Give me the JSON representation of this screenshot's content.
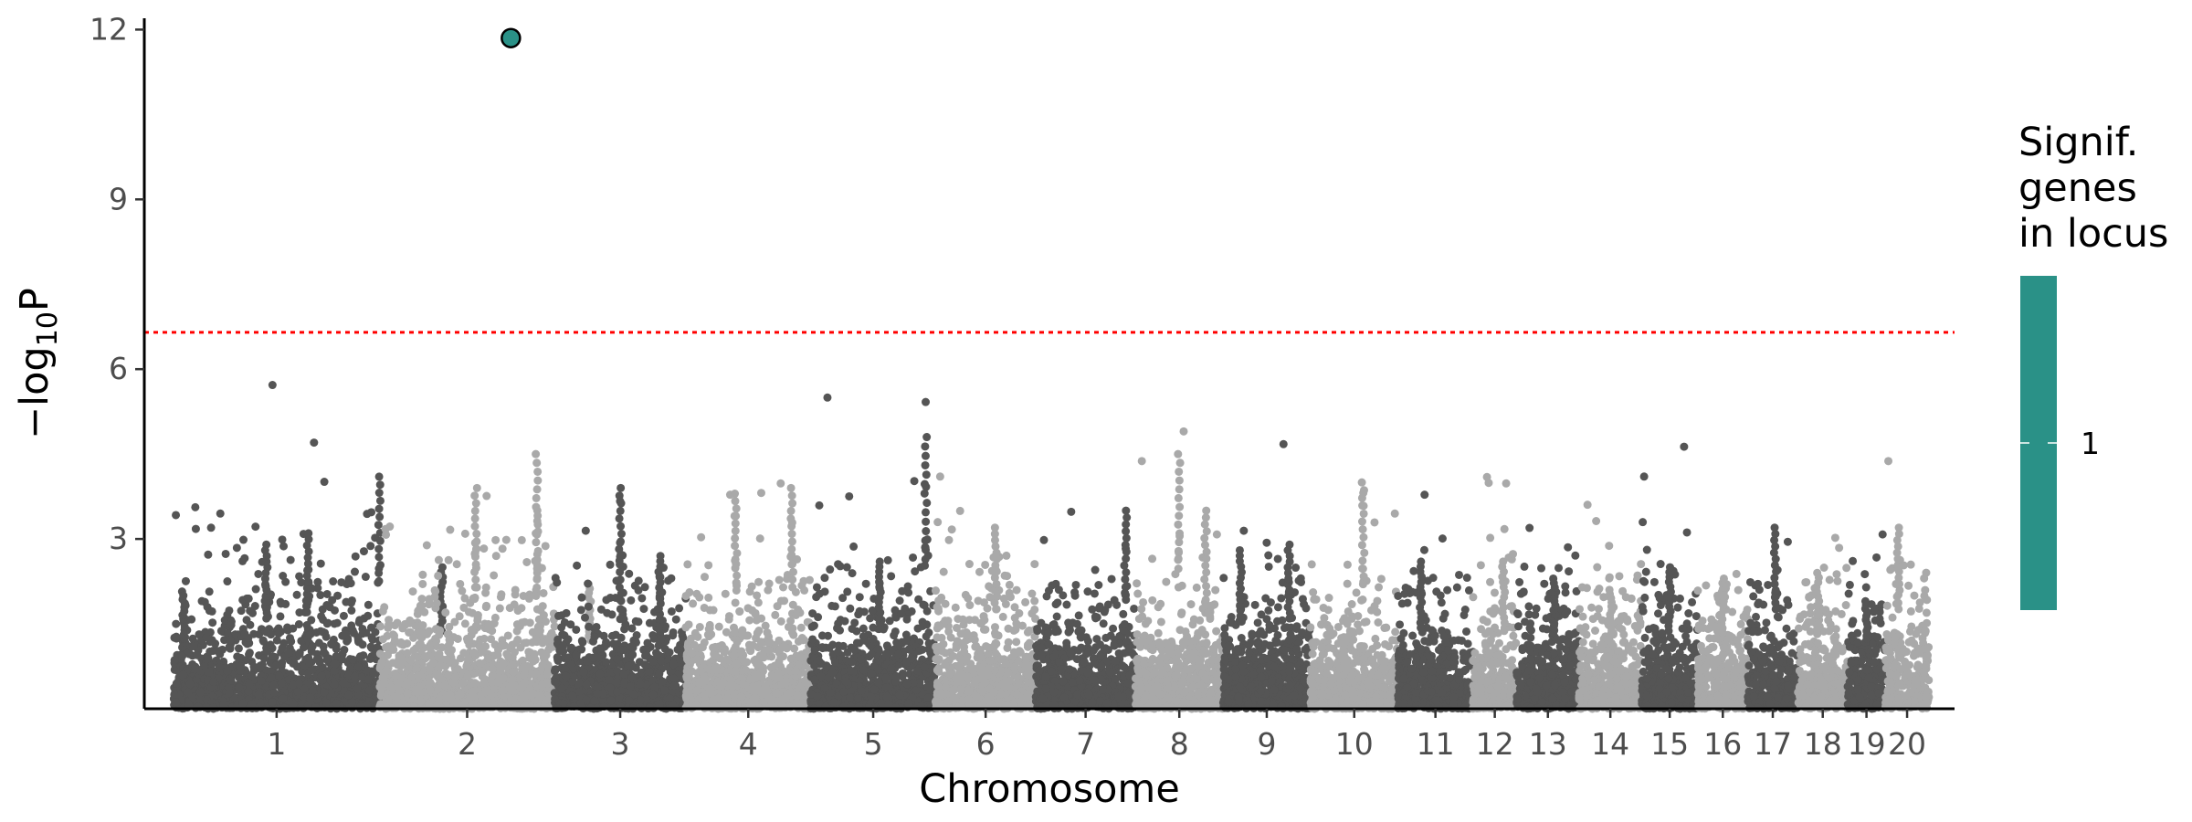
{
  "chart_data": {
    "type": "scatter",
    "subtype": "manhattan",
    "xlabel": "Chromosome",
    "ylabel": {
      "prefix": "−log",
      "sub": "10",
      "suffix": "P"
    },
    "ylim": [
      0,
      12.2
    ],
    "yticks": [
      3,
      6,
      9,
      12
    ],
    "grid": false,
    "threshold": {
      "value": 6.65,
      "color": "#ff0000",
      "style": "dotted"
    },
    "colors": {
      "dark": "#555555",
      "light": "#a9a9a9",
      "highlight": "#2a9187"
    },
    "chromosomes": [
      {
        "label": "1",
        "start": 0,
        "end": 1.65,
        "peaks": [
          [
            0.05,
            2.0
          ],
          [
            0.45,
            2.9
          ],
          [
            0.65,
            3.1
          ],
          [
            1.0,
            4.1
          ],
          [
            1.3,
            2.5
          ]
        ]
      },
      {
        "label": "2",
        "start": 1.65,
        "end": 3.05,
        "peaks": [
          [
            0.55,
            3.9
          ],
          [
            0.9,
            4.5
          ],
          [
            1.2,
            2.2
          ]
        ]
      },
      {
        "label": "3",
        "start": 3.05,
        "end": 4.1,
        "peaks": [
          [
            0.5,
            3.9
          ],
          [
            0.8,
            2.7
          ]
        ]
      },
      {
        "label": "4",
        "start": 4.1,
        "end": 5.1,
        "peaks": [
          [
            0.4,
            3.8
          ],
          [
            0.85,
            3.9
          ]
        ]
      },
      {
        "label": "5",
        "start": 5.1,
        "end": 6.1,
        "peaks": [
          [
            0.55,
            2.6
          ],
          [
            0.92,
            4.8
          ]
        ]
      },
      {
        "label": "6",
        "start": 6.1,
        "end": 6.9,
        "peaks": [
          [
            0.6,
            3.2
          ]
        ]
      },
      {
        "label": "7",
        "start": 6.9,
        "end": 7.7,
        "peaks": [
          [
            0.9,
            3.5
          ]
        ]
      },
      {
        "label": "8",
        "start": 7.7,
        "end": 8.4,
        "peaks": [
          [
            0.5,
            4.5
          ],
          [
            0.8,
            3.5
          ]
        ]
      },
      {
        "label": "9",
        "start": 8.4,
        "end": 9.1,
        "peaks": [
          [
            0.2,
            2.8
          ],
          [
            0.75,
            2.9
          ]
        ]
      },
      {
        "label": "10",
        "start": 9.1,
        "end": 9.8,
        "peaks": [
          [
            0.6,
            4.0
          ]
        ]
      },
      {
        "label": "11",
        "start": 9.8,
        "end": 10.4,
        "peaks": [
          [
            0.3,
            2.6
          ]
        ]
      },
      {
        "label": "12",
        "start": 10.4,
        "end": 10.75,
        "peaks": [
          [
            0.7,
            2.6
          ]
        ]
      },
      {
        "label": "13",
        "start": 10.75,
        "end": 11.25,
        "peaks": [
          [
            0.6,
            2.3
          ]
        ]
      },
      {
        "label": "14",
        "start": 11.25,
        "end": 11.75,
        "peaks": [
          [
            0.5,
            2.1
          ]
        ]
      },
      {
        "label": "15",
        "start": 11.75,
        "end": 12.2,
        "peaks": [
          [
            0.5,
            2.5
          ]
        ]
      },
      {
        "label": "16",
        "start": 12.2,
        "end": 12.6,
        "peaks": [
          [
            0.5,
            2.3
          ]
        ]
      },
      {
        "label": "17",
        "start": 12.6,
        "end": 13.0,
        "peaks": [
          [
            0.55,
            3.2
          ]
        ]
      },
      {
        "label": "18",
        "start": 13.0,
        "end": 13.4,
        "peaks": [
          [
            0.4,
            2.4
          ]
        ]
      },
      {
        "label": "19",
        "start": 13.4,
        "end": 13.7,
        "peaks": [
          [
            0.5,
            1.9
          ]
        ]
      },
      {
        "label": "20",
        "start": 13.7,
        "end": 14.05,
        "peaks": [
          [
            0.3,
            3.2
          ]
        ]
      }
    ],
    "notable_points": [
      {
        "chrom": "1",
        "pos": 0.48,
        "y": 5.72
      },
      {
        "chrom": "5",
        "pos": 0.92,
        "y": 5.42
      },
      {
        "chrom": "8",
        "pos": 0.55,
        "y": 4.9
      },
      {
        "chrom": "17",
        "pos": 0.8,
        "y": 2.95
      },
      {
        "chrom": "18",
        "pos": 0.75,
        "y": 3.02
      }
    ],
    "highlight_point": {
      "chrom": "2",
      "pos": 0.75,
      "y": 11.85,
      "genes": 1
    },
    "legend": {
      "title_lines": [
        "Signif.",
        "genes",
        "in locus"
      ],
      "label": "1",
      "color": "#2a9187",
      "placement": "right"
    }
  }
}
